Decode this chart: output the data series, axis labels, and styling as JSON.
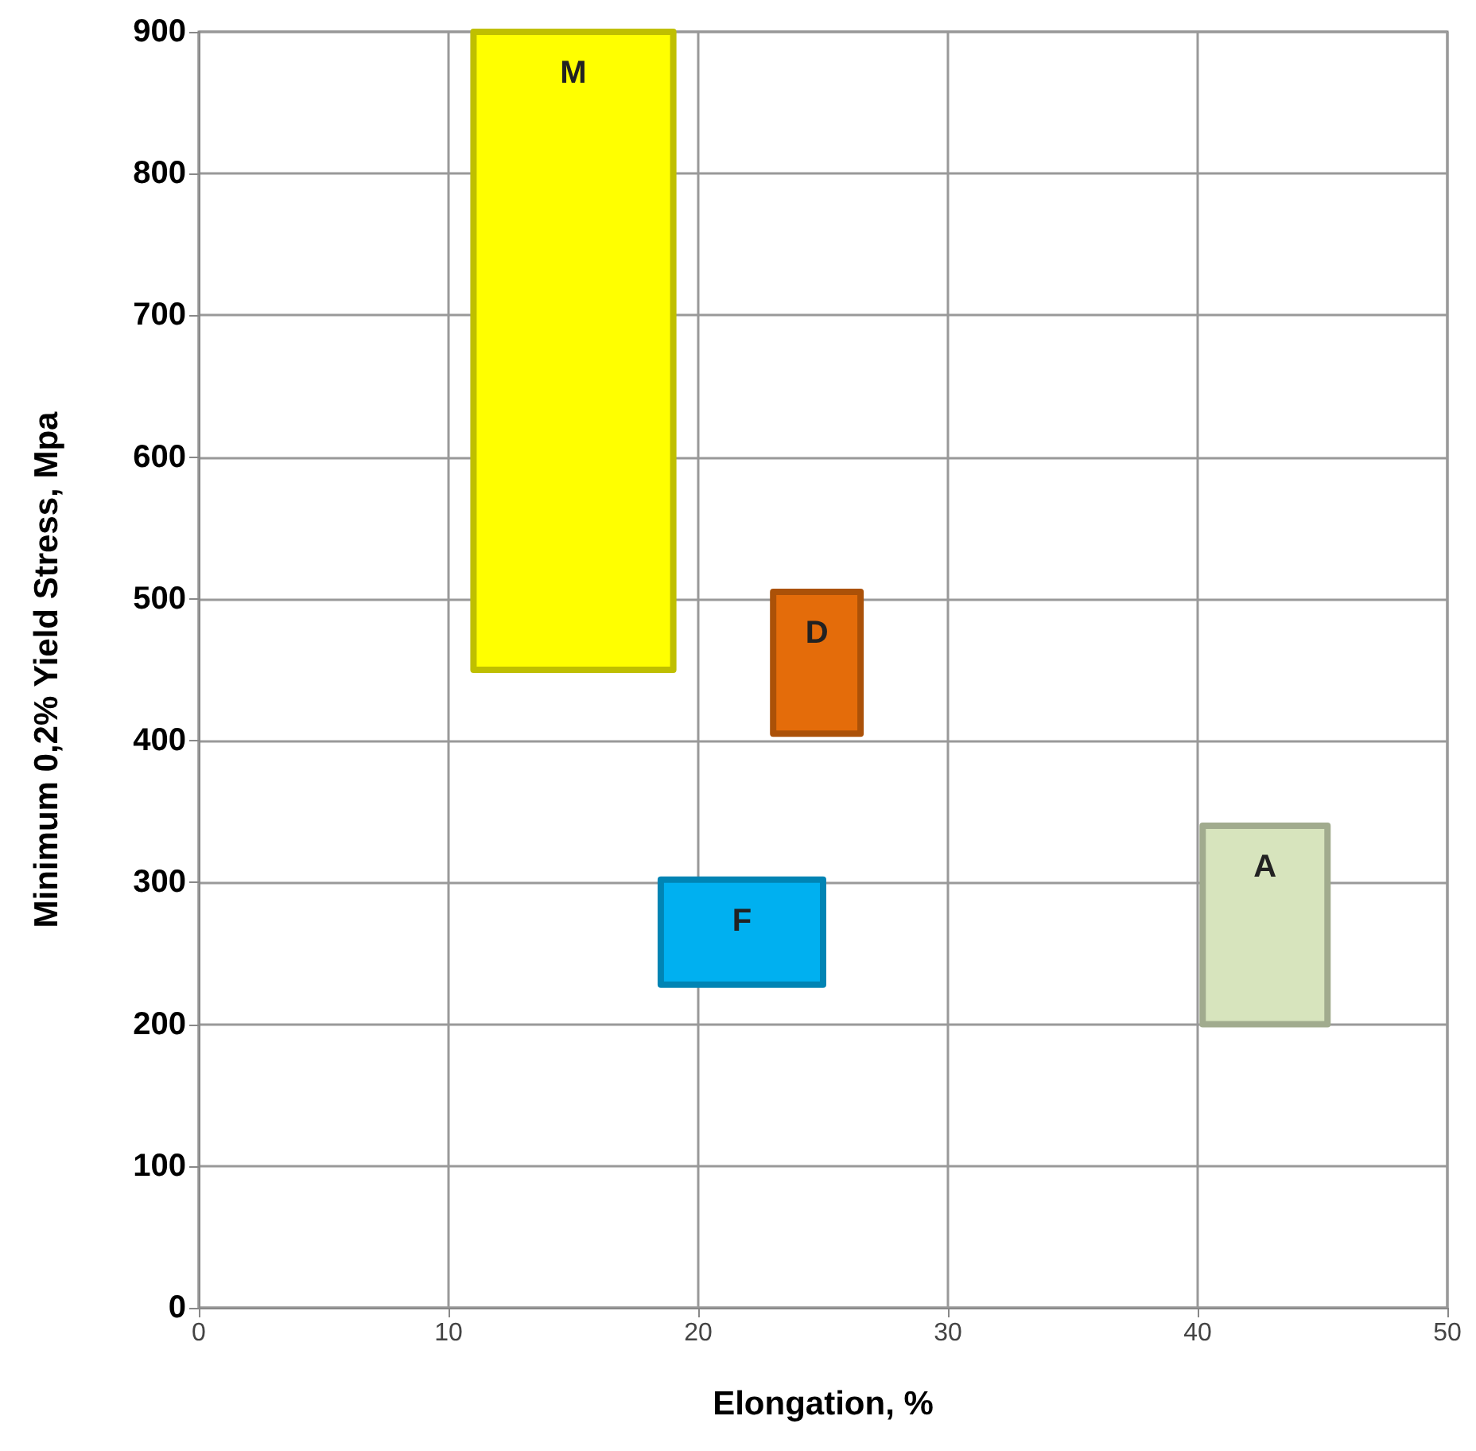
{
  "chart_data": {
    "type": "area",
    "xlabel": "Elongation, %",
    "ylabel": "Minimum 0,2% Yield Stress, Mpa",
    "xlim": [
      0,
      50
    ],
    "xticks": [
      0,
      10,
      20,
      30,
      40,
      50
    ],
    "ylim": [
      0,
      900
    ],
    "yticks": [
      0,
      100,
      200,
      300,
      400,
      500,
      600,
      700,
      800,
      900
    ],
    "grid": true,
    "legend": false,
    "series": [
      {
        "name": "M",
        "color": "#ffff00",
        "x": [
          11,
          11,
          19,
          19,
          11
        ],
        "values": [
          450,
          900,
          900,
          450,
          450
        ]
      },
      {
        "name": "D",
        "color": "#e46c0a",
        "x": [
          23,
          23,
          26.5,
          26.5,
          23
        ],
        "values": [
          405,
          505,
          505,
          405,
          405
        ]
      },
      {
        "name": "F",
        "color": "#00b0f0",
        "x": [
          18.5,
          18.5,
          25,
          25,
          18.5
        ],
        "values": [
          228,
          302,
          302,
          228,
          228
        ]
      },
      {
        "name": "A",
        "color": "#d7e4bd",
        "x": [
          40.2,
          40.2,
          45.2,
          45.2,
          40.2
        ],
        "values": [
          200,
          340,
          340,
          200,
          200
        ]
      }
    ]
  }
}
